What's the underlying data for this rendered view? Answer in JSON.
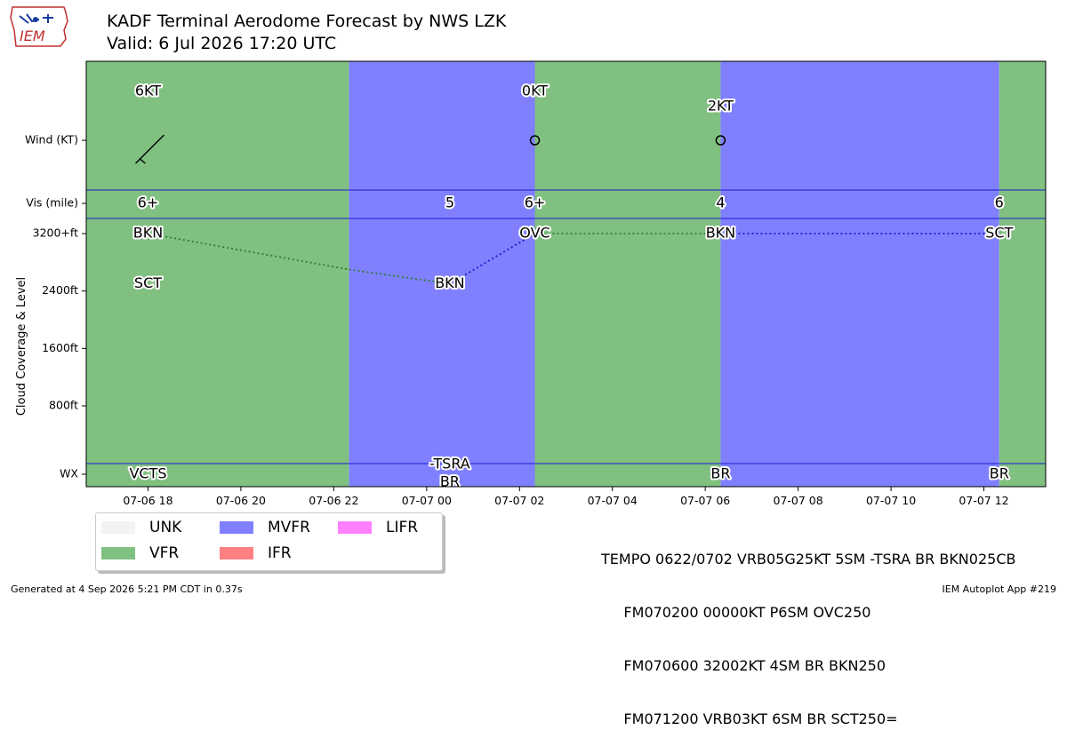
{
  "header": {
    "title": "KADF Terminal Aerodome Forecast by NWS LZK",
    "subtitle": "Valid: 6 Jul 2026 17:20 UTC",
    "logo_text": "IEM"
  },
  "colors": {
    "VFR": "#80c080",
    "MVFR": "#8080ff",
    "IFR": "#ff8080",
    "LIFR": "#ff80ff",
    "UNK": "#f3f3f3"
  },
  "chart_data": {
    "type": "timeline",
    "x_ticks": [
      "07-06 18",
      "07-06 20",
      "07-06 22",
      "07-07 00",
      "07-07 02",
      "07-07 04",
      "07-07 06",
      "07-07 08",
      "07-07 10",
      "07-07 12"
    ],
    "x_range_hours": [
      -1.33,
      19.33
    ],
    "category_bands": [
      {
        "start": -1.33,
        "end": 4.33,
        "category": "VFR"
      },
      {
        "start": 4.33,
        "end": 8.33,
        "category": "MVFR"
      },
      {
        "start": 8.33,
        "end": 12.33,
        "category": "VFR"
      },
      {
        "start": 12.33,
        "end": 18.33,
        "category": "MVFR"
      },
      {
        "start": 18.33,
        "end": 19.33,
        "category": "VFR"
      }
    ],
    "rows": {
      "wind_label": "Wind (KT)",
      "vis_label": "Vis (mile)",
      "cloud_label": "Cloud Coverage & Level",
      "wx_label": "WX"
    },
    "cloud_ticks": [
      "3200+ft",
      "2400ft",
      "1600ft",
      "800ft"
    ],
    "cloud_tick_values": [
      3200,
      2400,
      1600,
      800
    ],
    "wind": [
      {
        "t": 0,
        "label": "6KT",
        "speed": 6,
        "calm": false
      },
      {
        "t": 8.33,
        "label": "0KT",
        "speed": 0,
        "calm": true
      },
      {
        "t": 12.33,
        "label": "2KT",
        "speed": 2,
        "calm": true
      }
    ],
    "visibility": [
      {
        "t": 0,
        "label": "6+"
      },
      {
        "t": 6.5,
        "label": "5"
      },
      {
        "t": 8.33,
        "label": "6+"
      },
      {
        "t": 12.33,
        "label": "4"
      },
      {
        "t": 18.33,
        "label": "6"
      }
    ],
    "clouds": [
      {
        "t": 0,
        "label": "BKN",
        "level": 3200
      },
      {
        "t": 0,
        "label": "SCT",
        "level": 2500
      },
      {
        "t": 6.5,
        "label": "BKN",
        "level": 2500
      },
      {
        "t": 8.33,
        "label": "OVC",
        "level": 3200
      },
      {
        "t": 12.33,
        "label": "BKN",
        "level": 3200
      },
      {
        "t": 18.33,
        "label": "SCT",
        "level": 3200
      }
    ],
    "cloud_lines": [
      {
        "from": [
          0,
          3200
        ],
        "to": [
          4.33,
          2700
        ],
        "color": "#2e7d32"
      },
      {
        "from": [
          4.33,
          2700
        ],
        "to": [
          6.5,
          2500
        ],
        "color": "#2e7d32"
      },
      {
        "from": [
          6.5,
          2500
        ],
        "to": [
          8.33,
          3200
        ],
        "color": "#1a1acc"
      },
      {
        "from": [
          8.33,
          3200
        ],
        "to": [
          12.33,
          3200
        ],
        "color": "#2e7d32"
      },
      {
        "from": [
          12.33,
          3200
        ],
        "to": [
          18.33,
          3200
        ],
        "color": "#1a1acc"
      }
    ],
    "weather": [
      {
        "t": 0,
        "label": "VCTS"
      },
      {
        "t": 6.5,
        "label": "-TSRA"
      },
      {
        "t": 6.5,
        "label": "BR"
      },
      {
        "t": 12.33,
        "label": "BR"
      },
      {
        "t": 18.33,
        "label": "BR"
      }
    ]
  },
  "legend": [
    {
      "key": "UNK",
      "label": "UNK"
    },
    {
      "key": "VFR",
      "label": "VFR"
    },
    {
      "key": "MVFR",
      "label": "MVFR"
    },
    {
      "key": "IFR",
      "label": "IFR"
    },
    {
      "key": "LIFR",
      "label": "LIFR"
    }
  ],
  "taf_text": {
    "line1": "TEMPO 0622/0702 VRB05G25KT 5SM -TSRA BR BKN025CB",
    "line2": "     FM070200 00000KT P6SM OVC250",
    "line3": "     FM070600 32002KT 4SM BR BKN250",
    "line4": "     FM071200 VRB03KT 6SM BR SCT250="
  },
  "footer": {
    "generated": "Generated at 4 Sep 2026 5:21 PM CDT in 0.37s",
    "app": "IEM Autoplot App #219"
  }
}
